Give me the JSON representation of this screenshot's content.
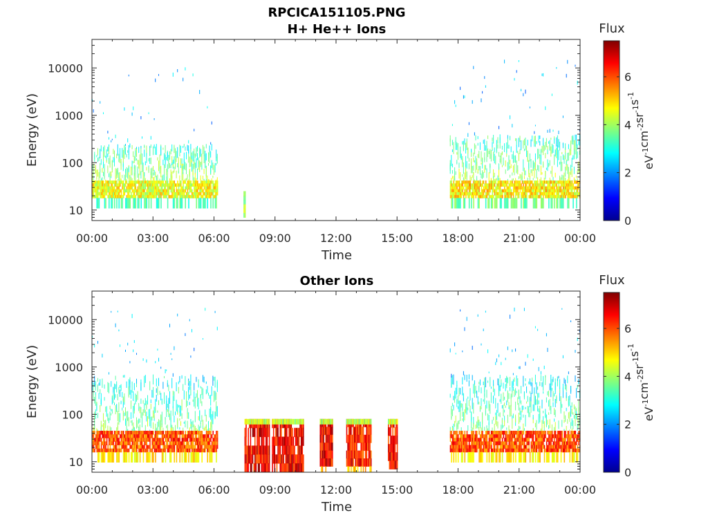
{
  "figure": {
    "title": "RPCICA151105.PNG"
  },
  "colorbar": {
    "label": "Flux",
    "unit_base": "eV",
    "unit_parts": [
      {
        "base": "eV",
        "exp": "-1"
      },
      {
        "base": "cm",
        "exp": "-2"
      },
      {
        "base": "sr",
        "exp": "-1"
      },
      {
        "base": "s",
        "exp": "-1"
      }
    ],
    "range": [
      0,
      7.5
    ],
    "ticks": [
      "0",
      "2",
      "4",
      "6"
    ],
    "colormap": "jet"
  },
  "chart_data": [
    {
      "type": "heatmap",
      "title": "H+ He++ Ions",
      "xlabel": "Time",
      "ylabel": "Energy (eV)",
      "yscale": "log",
      "xlim": [
        "00:00",
        "24:00"
      ],
      "ylim": [
        6,
        40000
      ],
      "xticks": [
        "00:00",
        "03:00",
        "06:00",
        "09:00",
        "12:00",
        "15:00",
        "18:00",
        "21:00",
        "00:00"
      ],
      "yticks": [
        "10",
        "100",
        "1000",
        "10000"
      ],
      "blocks": [
        {
          "start_hour": 0.0,
          "end_hour": 6.2,
          "core_energy": [
            18,
            42
          ],
          "core_flux": 4.6,
          "halo_max_energy": 250,
          "halo_flux": 2.8,
          "sparse_max_energy": 15000
        },
        {
          "start_hour": 7.45,
          "end_hour": 7.55,
          "core_energy": [
            7,
            25
          ],
          "core_flux": 3.8,
          "halo_max_energy": 25,
          "halo_flux": 3.5,
          "sparse_max_energy": 25
        },
        {
          "start_hour": 17.6,
          "end_hour": 24.0,
          "core_energy": [
            18,
            42
          ],
          "core_flux": 4.8,
          "halo_max_energy": 400,
          "halo_flux": 2.8,
          "sparse_max_energy": 15000
        }
      ]
    },
    {
      "type": "heatmap",
      "title": "Other Ions",
      "xlabel": "Time",
      "ylabel": "Energy (eV)",
      "yscale": "log",
      "xlim": [
        "00:00",
        "24:00"
      ],
      "ylim": [
        6,
        40000
      ],
      "xticks": [
        "00:00",
        "03:00",
        "06:00",
        "09:00",
        "12:00",
        "15:00",
        "18:00",
        "21:00",
        "00:00"
      ],
      "yticks": [
        "10",
        "100",
        "1000",
        "10000"
      ],
      "blocks": [
        {
          "start_hour": 0.0,
          "end_hour": 6.2,
          "core_energy": [
            16,
            45
          ],
          "core_flux": 6.0,
          "halo_max_energy": 700,
          "halo_flux": 2.5,
          "sparse_max_energy": 18000
        },
        {
          "start_hour": 7.5,
          "end_hour": 8.7,
          "core_energy": [
            6,
            80
          ],
          "core_flux": 6.6,
          "halo_max_energy": 80,
          "halo_flux": 4.2,
          "sparse_max_energy": 80
        },
        {
          "start_hour": 8.85,
          "end_hour": 10.4,
          "core_energy": [
            6,
            80
          ],
          "core_flux": 6.6,
          "halo_max_energy": 80,
          "halo_flux": 4.2,
          "sparse_max_energy": 80
        },
        {
          "start_hour": 11.2,
          "end_hour": 11.8,
          "core_energy": [
            8,
            80
          ],
          "core_flux": 6.6,
          "halo_max_energy": 80,
          "halo_flux": 4.2,
          "sparse_max_energy": 80
        },
        {
          "start_hour": 12.5,
          "end_hour": 13.7,
          "core_energy": [
            8,
            80
          ],
          "core_flux": 6.4,
          "halo_max_energy": 80,
          "halo_flux": 4.2,
          "sparse_max_energy": 80
        },
        {
          "start_hour": 14.55,
          "end_hour": 15.0,
          "core_energy": [
            7,
            80
          ],
          "core_flux": 6.5,
          "halo_max_energy": 80,
          "halo_flux": 4.2,
          "sparse_max_energy": 80
        },
        {
          "start_hour": 17.6,
          "end_hour": 24.0,
          "core_energy": [
            16,
            45
          ],
          "core_flux": 6.0,
          "halo_max_energy": 700,
          "halo_flux": 2.5,
          "sparse_max_energy": 18000
        }
      ]
    }
  ]
}
